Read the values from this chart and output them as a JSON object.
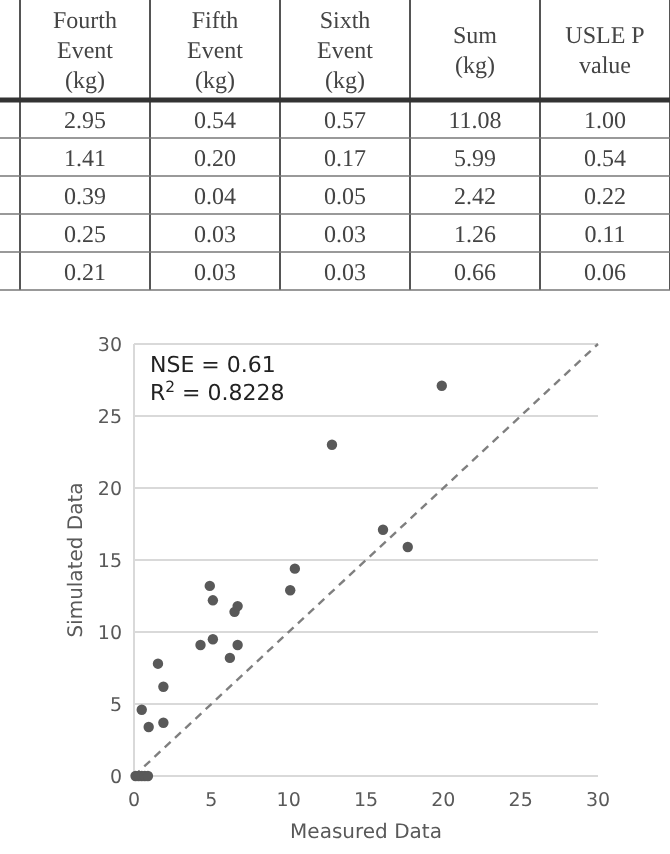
{
  "chart_data": [
    {
      "type": "other",
      "categories": [
        "Fourth Event (kg)",
        "Fifth Event (kg)",
        "Sixth Event (kg)",
        "Sum (kg)",
        "USLE P value"
      ],
      "cell_labels": [
        [
          "2.95",
          "0.54",
          "0.57",
          "11.08",
          "1.00"
        ],
        [
          "1.41",
          "0.20",
          "0.17",
          "5.99",
          "0.54"
        ],
        [
          "0.39",
          "0.04",
          "0.05",
          "2.42",
          "0.22"
        ],
        [
          "0.25",
          "0.03",
          "0.03",
          "1.26",
          "0.11"
        ],
        [
          "0.21",
          "0.03",
          "0.03",
          "0.66",
          "0.06"
        ]
      ]
    },
    {
      "type": "scatter",
      "xlabel": "Measured Data",
      "ylabel": "Simulated Data",
      "xlim": [
        0,
        30
      ],
      "ylim": [
        0,
        30
      ],
      "xticks": [
        0,
        5,
        10,
        15,
        20,
        25,
        30
      ],
      "yticks": [
        0,
        5,
        10,
        15,
        20,
        25,
        30
      ],
      "grid": "y",
      "annotations": [
        "NSE = 0.61",
        "R$^{2}$ = 0.8228"
      ],
      "series": [
        {
          "type": "scatter",
          "color": "#595959",
          "marker": "circle",
          "x": [
            0.1,
            0.3,
            0.5,
            0.7,
            0.9,
            0.5,
            0.95,
            1.55,
            1.9,
            1.9,
            4.3,
            4.9,
            5.1,
            5.1,
            6.2,
            6.5,
            6.7,
            6.7,
            10.1,
            10.4,
            12.8,
            16.1,
            17.7,
            19.9
          ],
          "values": [
            0,
            0,
            0,
            0,
            0,
            4.6,
            3.4,
            7.8,
            6.2,
            3.7,
            9.1,
            13.2,
            12.2,
            9.5,
            8.2,
            11.4,
            11.8,
            9.1,
            12.9,
            14.4,
            23.0,
            17.1,
            15.9,
            27.1
          ]
        },
        {
          "type": "line",
          "color": "#7f7f7f",
          "line_style": "dashed",
          "marker": "none",
          "x": [
            0,
            30
          ],
          "values": [
            0,
            30
          ]
        }
      ]
    }
  ]
}
